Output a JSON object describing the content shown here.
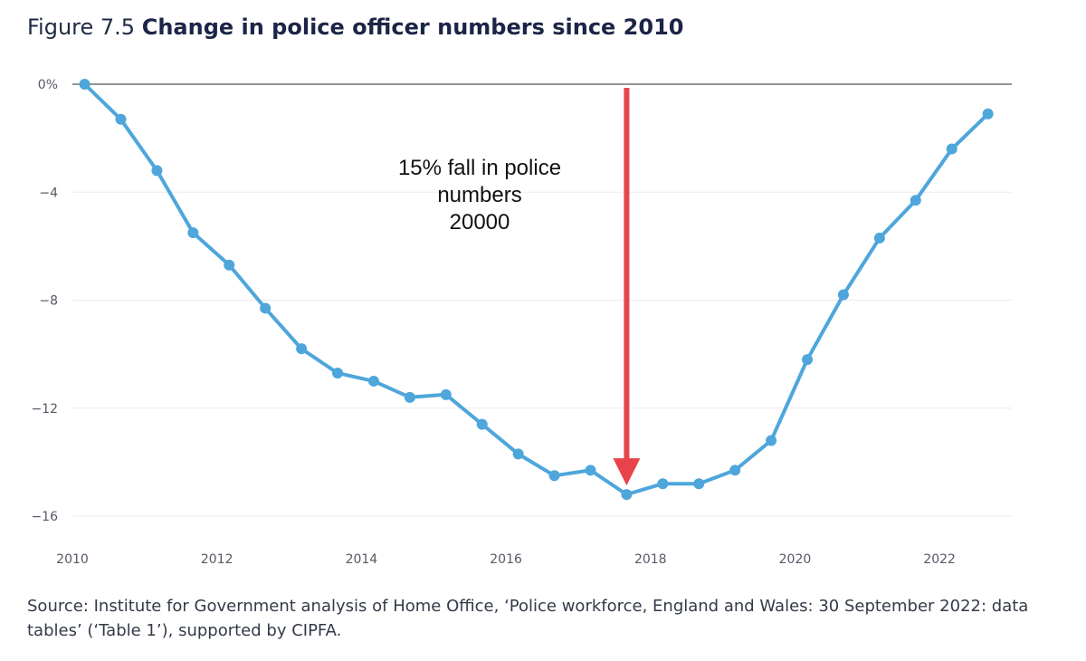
{
  "figure": {
    "prefix": "Figure 7.5",
    "title": "Change in police officer numbers since 2010"
  },
  "chart_data": {
    "type": "line",
    "title": "Change in police officer numbers since 2010",
    "xlabel": "",
    "ylabel": "",
    "x_ticks": [
      "2010",
      "2012",
      "2014",
      "2016",
      "2018",
      "2020",
      "2022"
    ],
    "y_ticks": [
      "0%",
      "−4",
      "−8",
      "−12",
      "−16"
    ],
    "y_tick_values": [
      0,
      -4,
      -8,
      -12,
      -16
    ],
    "xlim": [
      2010,
      2023
    ],
    "ylim": [
      -17,
      0
    ],
    "grid": true,
    "series": [
      {
        "name": "Change in police officer numbers",
        "color": "#4ea6db",
        "x": [
          2010.17,
          2010.67,
          2011.17,
          2011.67,
          2012.17,
          2012.67,
          2013.17,
          2013.67,
          2014.17,
          2014.67,
          2015.17,
          2015.67,
          2016.17,
          2016.67,
          2017.17,
          2017.67,
          2018.17,
          2018.67,
          2019.17,
          2019.67,
          2020.17,
          2020.67,
          2021.17,
          2021.67,
          2022.17,
          2022.67
        ],
        "y": [
          0,
          -1.3,
          -3.2,
          -5.5,
          -6.7,
          -8.3,
          -9.8,
          -10.7,
          -11.0,
          -11.6,
          -11.5,
          -12.6,
          -13.7,
          -14.5,
          -14.3,
          -15.2,
          -14.8,
          -14.8,
          -14.3,
          -13.2,
          -10.2,
          -7.8,
          -5.7,
          -4.3,
          -2.4,
          -1.1
        ]
      }
    ],
    "annotation": {
      "lines": [
        "15% fall in police",
        "numbers",
        "20000"
      ],
      "arrow_color": "#e8434b",
      "arrow_x": 2017.67,
      "arrow_from_y": 0,
      "arrow_to_y": -15.2
    }
  },
  "source": "Source: Institute for Government analysis of Home Office, ‘Police workforce, England and Wales: 30 September 2022: data tables’ (‘Table 1’), supported by CIPFA."
}
